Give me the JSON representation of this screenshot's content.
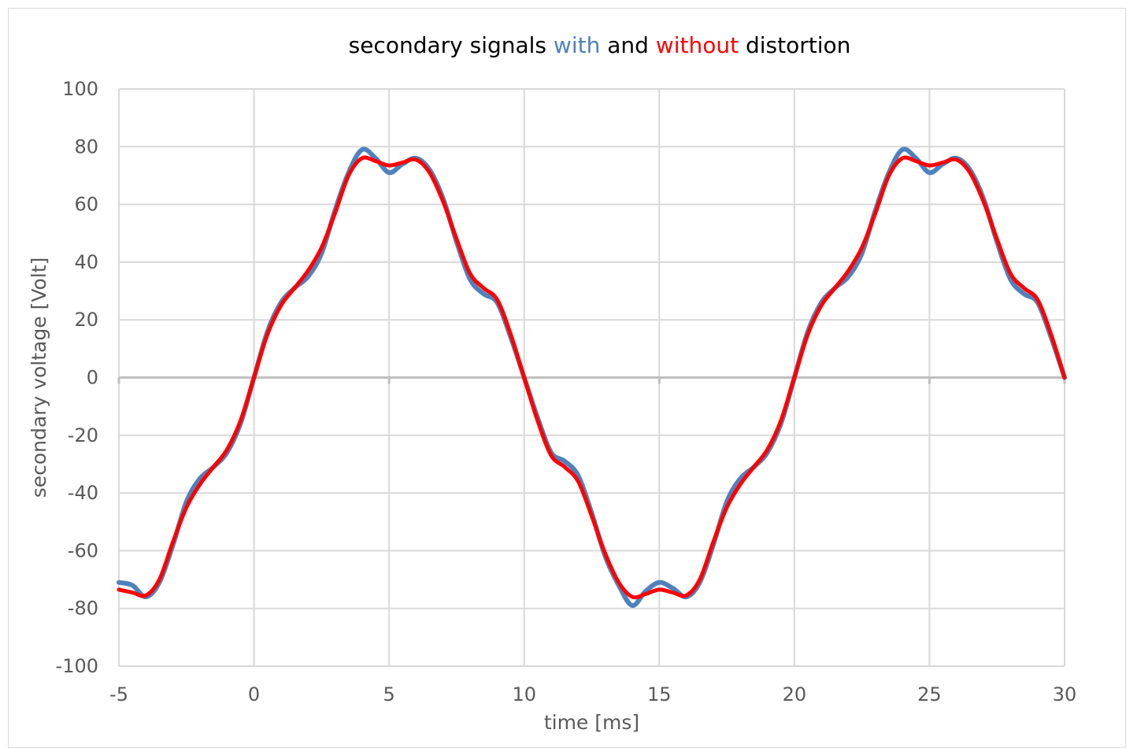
{
  "chart_data": {
    "type": "line",
    "title_parts": [
      {
        "text": "secondary signals ",
        "color": "#000000"
      },
      {
        "text": "with",
        "color": "#4f81bd"
      },
      {
        "text": " and ",
        "color": "#000000"
      },
      {
        "text": "without",
        "color": "#ff0000"
      },
      {
        "text": " distortion",
        "color": "#000000"
      }
    ],
    "xlabel": "time [ms]",
    "ylabel": "secondary voltage [Volt]",
    "xlim": [
      -5,
      30
    ],
    "ylim": [
      -100,
      100
    ],
    "x_ticks": [
      -5,
      0,
      5,
      10,
      15,
      20,
      25,
      30
    ],
    "y_ticks": [
      100,
      80,
      60,
      40,
      20,
      0,
      -20,
      -40,
      -60,
      -80,
      -100
    ],
    "grid": true,
    "colors": {
      "with": "#4f81bd",
      "without": "#ff0000",
      "grid": "#d9d9d9",
      "zero_line": "#bfbfbf"
    },
    "series": [
      {
        "color": "#4f81bd",
        "x": [
          -5,
          -4.5,
          -4,
          -3.5,
          -3,
          -2.5,
          -2,
          -1.5,
          -1,
          -0.5,
          0,
          0.5,
          1,
          1.5,
          2,
          2.5,
          3,
          3.5,
          4,
          4.5,
          5,
          5.5,
          6,
          6.5,
          7,
          7.5,
          8,
          8.5,
          9,
          9.5,
          10,
          10.5,
          11,
          11.5,
          12,
          12.5,
          13,
          13.5,
          14,
          14.5,
          15,
          15.5,
          16,
          16.5,
          17,
          17.5,
          18,
          18.5,
          19,
          19.5,
          20,
          20.5,
          21,
          21.5,
          22,
          22.5,
          23,
          23.5,
          24,
          24.5,
          25,
          25.5,
          26,
          26.5,
          27,
          27.5,
          28,
          28.5,
          29,
          29.5,
          30
        ],
        "y": [
          -71,
          -72,
          -76,
          -71,
          -58,
          -43,
          -35,
          -31,
          -26,
          -16,
          0,
          16,
          26,
          31,
          35,
          43,
          58,
          71,
          79,
          76,
          71,
          74,
          76,
          72,
          62,
          47,
          34,
          29,
          26,
          14,
          0,
          -14,
          -26,
          -29,
          -34,
          -47,
          -62,
          -72,
          -79,
          -74,
          -71,
          -73,
          -76,
          -71,
          -58,
          -43,
          -35,
          -31,
          -26,
          -16,
          0,
          16,
          26,
          31,
          35,
          43,
          58,
          71,
          79,
          76,
          71,
          74,
          76,
          72,
          62,
          47,
          34,
          29,
          26,
          14,
          0
        ]
      },
      {
        "color": "#ff0000",
        "x": [
          -5,
          -4.5,
          -4,
          -3.5,
          -3,
          -2.5,
          -2,
          -1.5,
          -1,
          -0.5,
          0,
          0.5,
          1,
          1.5,
          2,
          2.5,
          3,
          3.5,
          4,
          4.5,
          5,
          5.5,
          6,
          6.5,
          7,
          7.5,
          8,
          8.5,
          9,
          9.5,
          10,
          10.5,
          11,
          11.5,
          12,
          12.5,
          13,
          13.5,
          14,
          14.5,
          15,
          15.5,
          16,
          16.5,
          17,
          17.5,
          18,
          18.5,
          19,
          19.5,
          20,
          20.5,
          21,
          21.5,
          22,
          22.5,
          23,
          23.5,
          24,
          24.5,
          25,
          25.5,
          26,
          26.5,
          27,
          27.5,
          28,
          28.5,
          29,
          29.5,
          30
        ],
        "y": [
          -73.5,
          -74.5,
          -75.5,
          -70,
          -57,
          -45,
          -37,
          -31,
          -25,
          -15,
          0,
          15,
          25,
          31,
          37,
          45,
          57,
          70,
          76,
          75,
          73.5,
          74.5,
          75.5,
          71,
          61,
          48,
          36,
          31,
          27,
          15,
          0,
          -15,
          -27,
          -31,
          -36,
          -48,
          -61,
          -71,
          -76,
          -75,
          -73.5,
          -74.5,
          -75.5,
          -70,
          -57,
          -45,
          -37,
          -31,
          -25,
          -15,
          0,
          15,
          25,
          31,
          37,
          45,
          57,
          70,
          76,
          75,
          73.5,
          74.5,
          75.5,
          71,
          61,
          48,
          36,
          31,
          27,
          15,
          0
        ]
      }
    ]
  }
}
